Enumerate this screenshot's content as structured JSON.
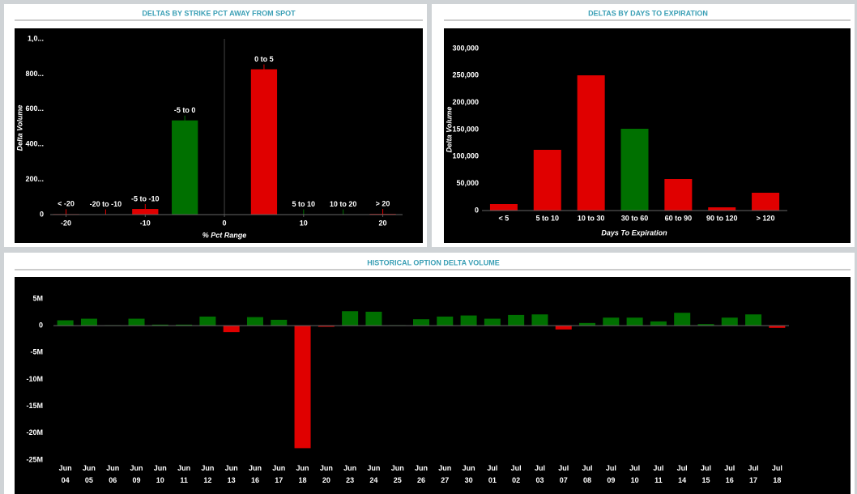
{
  "chart_data": [
    {
      "type": "bar",
      "title": "DELTAS BY STRIKE PCT AWAY FROM SPOT",
      "x_label": "% Pct Range",
      "y_label": "Delta Volume",
      "x": [
        -20,
        -15,
        -10,
        -5,
        5,
        10,
        15,
        20
      ],
      "categories": [
        "< -20",
        "-20 to -10",
        "-5 to -10",
        "-5 to 0",
        "0 to 5",
        "5 to 10",
        "10 to 20",
        "> 20"
      ],
      "values": [
        3,
        2,
        32,
        536,
        827,
        2,
        2,
        4
      ],
      "colors": [
        "#e00000",
        "#e00000",
        "#e00000",
        "#007000",
        "#e00000",
        "#007000",
        "#007000",
        "#e00000"
      ],
      "bar_width": 3.3,
      "xlim": [
        -22,
        22.5
      ],
      "xticks": [
        -20,
        -10,
        0,
        10,
        20
      ],
      "ylim": [
        0,
        1000
      ],
      "yticks": [
        0,
        {
          "value": 200,
          "label": "200..."
        },
        {
          "value": 400,
          "label": "400..."
        },
        {
          "value": 600,
          "label": "600..."
        },
        {
          "value": 800,
          "label": "800..."
        },
        {
          "value": 1000,
          "label": "1,0..."
        }
      ]
    },
    {
      "type": "bar",
      "title": "DELTAS BY DAYS TO EXPIRATION",
      "x_label": "Days To Expiration",
      "y_label": "Delta Volume",
      "categories": [
        "< 5",
        "5 to 10",
        "10 to 30",
        "30 to 60",
        "60 to 90",
        "90 to 120",
        "> 120"
      ],
      "values": [
        12000,
        112500,
        250500,
        151500,
        58500,
        6000,
        33000
      ],
      "colors": [
        "#e00000",
        "#e00000",
        "#e00000",
        "#007000",
        "#e00000",
        "#e00000",
        "#e00000"
      ],
      "ylim": [
        0,
        300000
      ],
      "yticks": [
        0,
        {
          "value": 50000,
          "label": "50,000"
        },
        {
          "value": 100000,
          "label": "100,000"
        },
        {
          "value": 150000,
          "label": "150,000"
        },
        {
          "value": 200000,
          "label": "200,000"
        },
        {
          "value": 250000,
          "label": "250,000"
        },
        {
          "value": 300000,
          "label": "300,000"
        }
      ]
    },
    {
      "type": "bar",
      "title": "HISTORICAL OPTION DELTA VOLUME",
      "categories": [
        "Jun 04",
        "Jun 05",
        "Jun 06",
        "Jun 09",
        "Jun 10",
        "Jun 11",
        "Jun 12",
        "Jun 13",
        "Jun 16",
        "Jun 17",
        "Jun 18",
        "Jun 20",
        "Jun 23",
        "Jun 24",
        "Jun 25",
        "Jun 26",
        "Jun 27",
        "Jun 30",
        "Jul 01",
        "Jul 02",
        "Jul 03",
        "Jul 07",
        "Jul 08",
        "Jul 09",
        "Jul 10",
        "Jul 11",
        "Jul 14",
        "Jul 15",
        "Jul 16",
        "Jul 17",
        "Jul 18"
      ],
      "values": [
        1.0,
        1.3,
        0.1,
        1.3,
        0.2,
        0.2,
        1.7,
        -1.2,
        1.6,
        1.1,
        -22.8,
        -0.2,
        2.7,
        2.6,
        0.1,
        1.2,
        1.7,
        1.9,
        1.3,
        2.0,
        2.1,
        -0.7,
        0.5,
        1.5,
        1.5,
        0.8,
        2.4,
        0.3,
        1.5,
        2.1,
        -0.4
      ],
      "positive_color": "#007000",
      "negative_color": "#e00000",
      "ylim": [
        -25,
        5
      ],
      "yticks": [
        {
          "value": -25,
          "label": "-25M"
        },
        {
          "value": -20,
          "label": "-20M"
        },
        {
          "value": -15,
          "label": "-15M"
        },
        {
          "value": -10,
          "label": "-10M"
        },
        {
          "value": -5,
          "label": "-5M"
        },
        0,
        {
          "value": 5,
          "label": "5M"
        }
      ]
    }
  ]
}
